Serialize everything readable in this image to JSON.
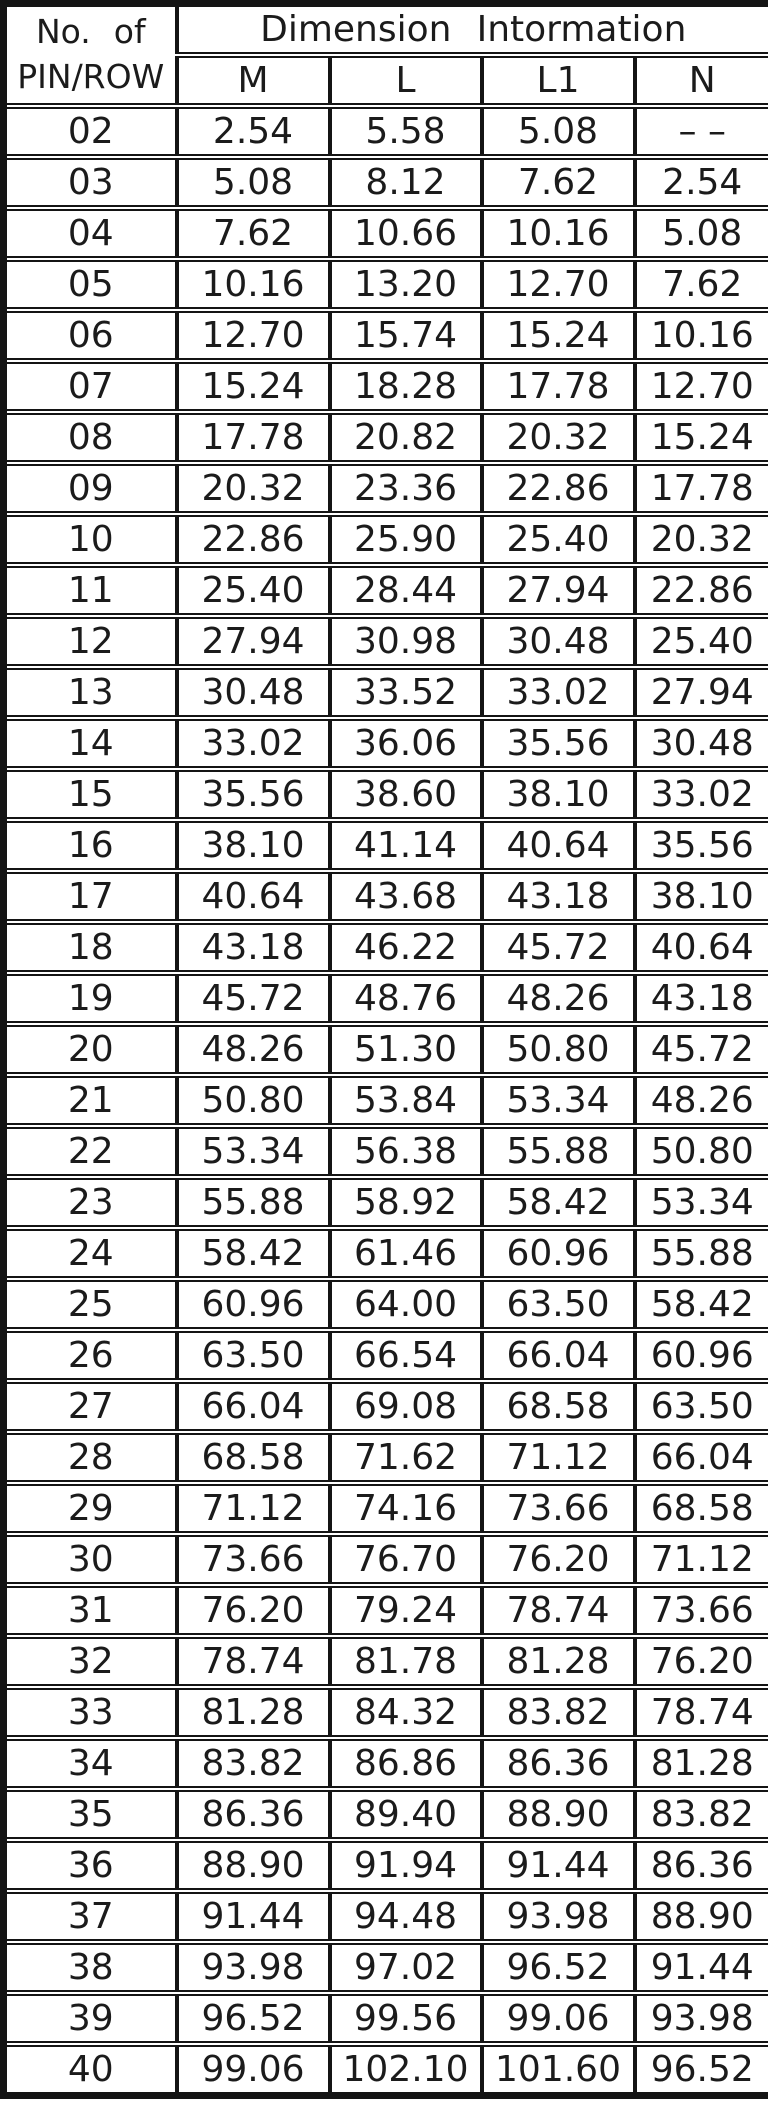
{
  "table": {
    "corner_header": {
      "line1": "No. of",
      "line2": "PIN/ROW"
    },
    "group_header": "Dimension Intormation",
    "columns": [
      "M",
      "L",
      "L1",
      "N"
    ],
    "no_value_marker": "– –",
    "rows": [
      [
        "02",
        "2.54",
        "5.58",
        "5.08",
        "– –"
      ],
      [
        "03",
        "5.08",
        "8.12",
        "7.62",
        "2.54"
      ],
      [
        "04",
        "7.62",
        "10.66",
        "10.16",
        "5.08"
      ],
      [
        "05",
        "10.16",
        "13.20",
        "12.70",
        "7.62"
      ],
      [
        "06",
        "12.70",
        "15.74",
        "15.24",
        "10.16"
      ],
      [
        "07",
        "15.24",
        "18.28",
        "17.78",
        "12.70"
      ],
      [
        "08",
        "17.78",
        "20.82",
        "20.32",
        "15.24"
      ],
      [
        "09",
        "20.32",
        "23.36",
        "22.86",
        "17.78"
      ],
      [
        "10",
        "22.86",
        "25.90",
        "25.40",
        "20.32"
      ],
      [
        "11",
        "25.40",
        "28.44",
        "27.94",
        "22.86"
      ],
      [
        "12",
        "27.94",
        "30.98",
        "30.48",
        "25.40"
      ],
      [
        "13",
        "30.48",
        "33.52",
        "33.02",
        "27.94"
      ],
      [
        "14",
        "33.02",
        "36.06",
        "35.56",
        "30.48"
      ],
      [
        "15",
        "35.56",
        "38.60",
        "38.10",
        "33.02"
      ],
      [
        "16",
        "38.10",
        "41.14",
        "40.64",
        "35.56"
      ],
      [
        "17",
        "40.64",
        "43.68",
        "43.18",
        "38.10"
      ],
      [
        "18",
        "43.18",
        "46.22",
        "45.72",
        "40.64"
      ],
      [
        "19",
        "45.72",
        "48.76",
        "48.26",
        "43.18"
      ],
      [
        "20",
        "48.26",
        "51.30",
        "50.80",
        "45.72"
      ],
      [
        "21",
        "50.80",
        "53.84",
        "53.34",
        "48.26"
      ],
      [
        "22",
        "53.34",
        "56.38",
        "55.88",
        "50.80"
      ],
      [
        "23",
        "55.88",
        "58.92",
        "58.42",
        "53.34"
      ],
      [
        "24",
        "58.42",
        "61.46",
        "60.96",
        "55.88"
      ],
      [
        "25",
        "60.96",
        "64.00",
        "63.50",
        "58.42"
      ],
      [
        "26",
        "63.50",
        "66.54",
        "66.04",
        "60.96"
      ],
      [
        "27",
        "66.04",
        "69.08",
        "68.58",
        "63.50"
      ],
      [
        "28",
        "68.58",
        "71.62",
        "71.12",
        "66.04"
      ],
      [
        "29",
        "71.12",
        "74.16",
        "73.66",
        "68.58"
      ],
      [
        "30",
        "73.66",
        "76.70",
        "76.20",
        "71.12"
      ],
      [
        "31",
        "76.20",
        "79.24",
        "78.74",
        "73.66"
      ],
      [
        "32",
        "78.74",
        "81.78",
        "81.28",
        "76.20"
      ],
      [
        "33",
        "81.28",
        "84.32",
        "83.82",
        "78.74"
      ],
      [
        "34",
        "83.82",
        "86.86",
        "86.36",
        "81.28"
      ],
      [
        "35",
        "86.36",
        "89.40",
        "88.90",
        "83.82"
      ],
      [
        "36",
        "88.90",
        "91.94",
        "91.44",
        "86.36"
      ],
      [
        "37",
        "91.44",
        "94.48",
        "93.98",
        "88.90"
      ],
      [
        "38",
        "93.98",
        "97.02",
        "96.52",
        "91.44"
      ],
      [
        "39",
        "96.52",
        "99.56",
        "99.06",
        "93.98"
      ],
      [
        "40",
        "99.06",
        "102.10",
        "101.60",
        "96.52"
      ]
    ]
  },
  "colors": {
    "text": "#1b1b1b",
    "border": "#141414",
    "background": "#ffffff"
  }
}
